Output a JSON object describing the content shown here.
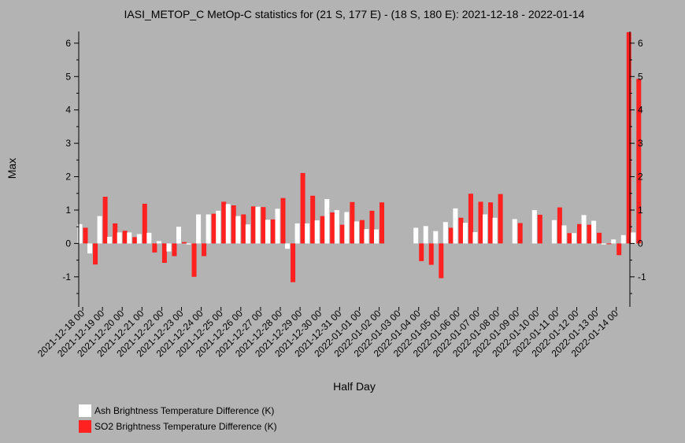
{
  "chart_data": {
    "type": "bar",
    "title": "IASI_METOP_C MetOp-C statistics for (21 S, 177 E) - (18 S, 180 E): 2021-12-18 - 2022-01-14",
    "xlabel": "Half Day",
    "ylabel": "Max",
    "ylim": [
      -1.9,
      6.35
    ],
    "yticks": [
      -1,
      0,
      1,
      2,
      3,
      4,
      5,
      6
    ],
    "grid": false,
    "legend_position": "bottom-left",
    "tick_labels": [
      "2021-12-18 00",
      "2021-12-19 00",
      "2021-12-20 00",
      "2021-12-21 00",
      "2021-12-22 00",
      "2021-12-23 00",
      "2021-12-24 00",
      "2021-12-25 00",
      "2021-12-26 00",
      "2021-12-27 00",
      "2021-12-28 00",
      "2021-12-29 00",
      "2021-12-30 00",
      "2021-12-31 00",
      "2022-01-01 00",
      "2022-01-02 00",
      "2022-01-03 00",
      "2022-01-04 00",
      "2022-01-05 00",
      "2022-01-06 00",
      "2022-01-07 00",
      "2022-01-08 00",
      "2022-01-09 00",
      "2022-01-10 00",
      "2022-01-11 00",
      "2022-01-12 00",
      "2022-01-13 00",
      "2022-01-14 00"
    ],
    "series": [
      {
        "name": "Ash Brightness Temperature Difference (K)",
        "color": "#ffffff",
        "values": [
          0.58,
          -0.3,
          0.82,
          0.2,
          0.33,
          0.33,
          0.28,
          0.32,
          0.07,
          -0.24,
          0.5,
          -0.03,
          0.87,
          0.87,
          0.98,
          1.18,
          0.82,
          0.57,
          1.1,
          0.71,
          1.04,
          -0.16,
          0.6,
          0.6,
          0.69,
          1.33,
          1.0,
          0.94,
          0.66,
          0.43,
          0.42,
          null,
          null,
          null,
          0.47,
          0.52,
          0.37,
          0.64,
          1.05,
          0.62,
          0.34,
          0.87,
          0.77,
          null,
          0.73,
          null,
          1.0,
          null,
          0.7,
          0.54,
          0.31,
          0.85,
          0.68,
          -0.03,
          0.12,
          0.25,
          0.33
        ]
      },
      {
        "name": "SO2 Brightness Temperature Difference (K)",
        "color": "#ff2020",
        "values": [
          0.47,
          -0.63,
          1.4,
          0.6,
          0.38,
          0.19,
          1.19,
          -0.27,
          -0.58,
          -0.38,
          0.04,
          -1.0,
          -0.38,
          0.89,
          1.25,
          1.14,
          0.87,
          1.11,
          1.09,
          0.72,
          1.36,
          -1.16,
          2.11,
          1.43,
          0.82,
          0.93,
          0.56,
          1.24,
          0.7,
          0.98,
          1.23,
          null,
          null,
          null,
          -0.53,
          -0.64,
          -1.04,
          0.47,
          0.77,
          1.49,
          1.25,
          1.23,
          1.48,
          null,
          0.61,
          null,
          0.86,
          null,
          1.08,
          0.31,
          0.58,
          0.56,
          0.32,
          0.0,
          -0.35,
          6.33,
          4.93
        ]
      }
    ]
  },
  "legend": {
    "items": [
      {
        "label": "Ash Brightness Temperature Difference (K)",
        "color": "#ffffff"
      },
      {
        "label": "SO2 Brightness Temperature Difference (K)",
        "color": "#ff2020"
      }
    ]
  }
}
